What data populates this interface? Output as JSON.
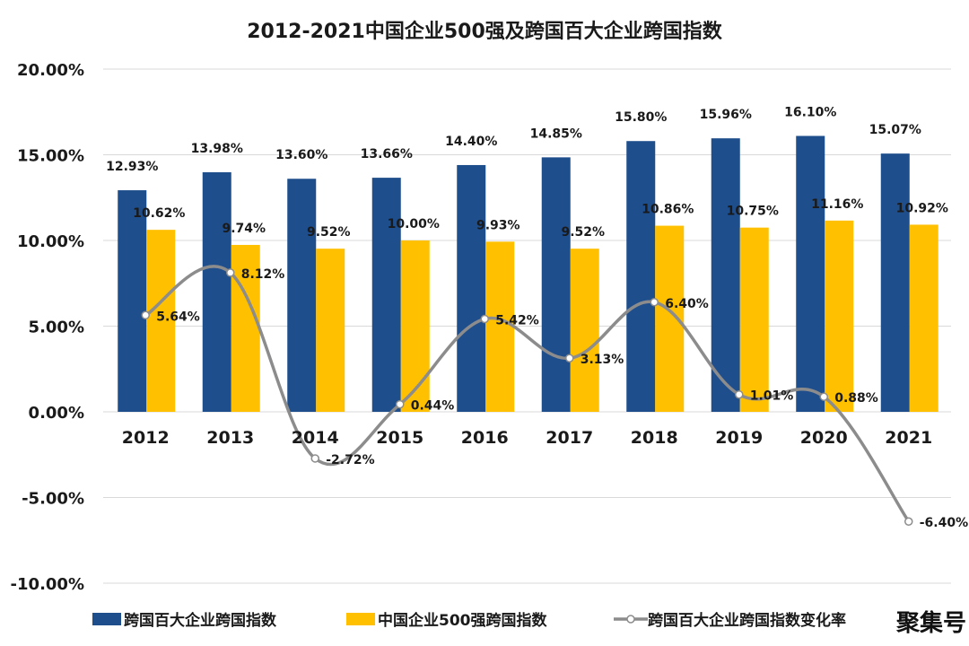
{
  "chart_data": {
    "type": "bar",
    "title": "2012-2021中国企业500强及跨国百大企业跨国指数",
    "categories": [
      "2012",
      "2013",
      "2014",
      "2015",
      "2016",
      "2017",
      "2018",
      "2019",
      "2020",
      "2021"
    ],
    "ylim": [
      -10,
      20
    ],
    "yticks": [
      "-10.00%",
      "-5.00%",
      "0.00%",
      "5.00%",
      "10.00%",
      "15.00%",
      "20.00%"
    ],
    "ytick_values": [
      -10,
      -5,
      0,
      5,
      10,
      15,
      20
    ],
    "grid": true,
    "legend_position": "bottom",
    "series": [
      {
        "name": "跨国百大企业跨国指数",
        "kind": "bar",
        "color": "#1f4e8c",
        "values": [
          12.93,
          13.98,
          13.6,
          13.66,
          14.4,
          14.85,
          15.8,
          15.96,
          16.1,
          15.07
        ],
        "labels": [
          "12.93%",
          "13.98%",
          "13.60%",
          "13.66%",
          "14.40%",
          "14.85%",
          "15.80%",
          "15.96%",
          "16.10%",
          "15.07%"
        ]
      },
      {
        "name": "中国企业500强跨国指数",
        "kind": "bar",
        "color": "#ffc000",
        "values": [
          10.62,
          9.74,
          9.52,
          10.0,
          9.93,
          9.52,
          10.86,
          10.75,
          11.16,
          10.92
        ],
        "labels": [
          "10.62%",
          "9.74%",
          "9.52%",
          "10.00%",
          "9.93%",
          "9.52%",
          "10.86%",
          "10.75%",
          "11.16%",
          "10.92%"
        ]
      },
      {
        "name": "跨国百大企业跨国指数变化率",
        "kind": "line",
        "color": "#8c8c8c",
        "smooth": true,
        "values": [
          5.64,
          8.12,
          -2.72,
          0.44,
          5.42,
          3.13,
          6.4,
          1.01,
          0.88,
          -6.4
        ],
        "labels": [
          "5.64%",
          "8.12%",
          "-2.72%",
          "0.44%",
          "5.42%",
          "3.13%",
          "6.40%",
          "1.01%",
          "0.88%",
          "-6.40%"
        ]
      }
    ]
  },
  "watermark": "聚集号"
}
